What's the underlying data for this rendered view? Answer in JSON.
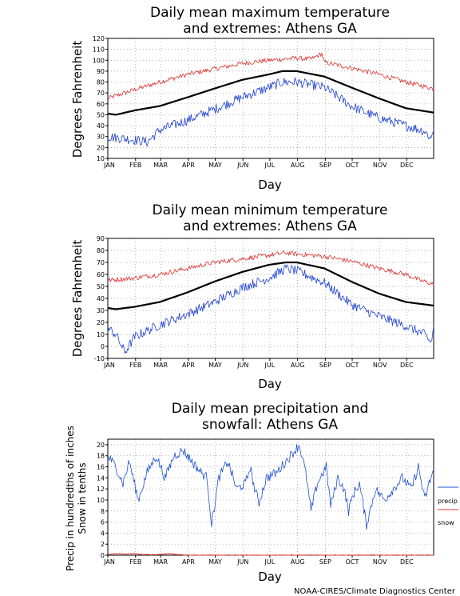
{
  "credit": "NOAA-CIRES/Climate Diagnostics Center",
  "colors": {
    "mean": "#000000",
    "max_extreme": "#e03030",
    "min_extreme": "#2040d0",
    "precip": "#2050d0",
    "snow": "#e03030",
    "grid": "#999999"
  },
  "chart_data": [
    {
      "type": "line",
      "title": [
        "Daily mean maximum temperature",
        "and extremes: Athens GA"
      ],
      "xlabel": "Day",
      "ylabel": "Degrees Fahrenheit",
      "x_ticks": [
        "JAN",
        "FEB",
        "MAR",
        "APR",
        "MAY",
        "JUN",
        "JUL",
        "AUG",
        "SEP",
        "OCT",
        "NOV",
        "DEC"
      ],
      "ylim": [
        10,
        120
      ],
      "y_ticks": [
        10,
        20,
        30,
        40,
        50,
        60,
        70,
        80,
        90,
        100,
        110,
        120
      ],
      "grid": true,
      "series": [
        {
          "role": "mean",
          "keypoints": [
            [
              1,
              51
            ],
            [
              10,
              50
            ],
            [
              31,
              54
            ],
            [
              59,
              58
            ],
            [
              90,
              66
            ],
            [
              120,
              74
            ],
            [
              151,
              82
            ],
            [
              181,
              87
            ],
            [
              196,
              90
            ],
            [
              212,
              90
            ],
            [
              243,
              85
            ],
            [
              273,
              75
            ],
            [
              304,
              65
            ],
            [
              334,
              56
            ],
            [
              365,
              52
            ]
          ]
        },
        {
          "role": "max_extreme",
          "keypoints": [
            [
              1,
              65
            ],
            [
              31,
              73
            ],
            [
              59,
              80
            ],
            [
              90,
              87
            ],
            [
              120,
              92
            ],
            [
              151,
              97
            ],
            [
              181,
              100
            ],
            [
              212,
              102
            ],
            [
              228,
              101
            ],
            [
              240,
              106
            ],
            [
              243,
              98
            ],
            [
              273,
              93
            ],
            [
              304,
              87
            ],
            [
              334,
              80
            ],
            [
              365,
              74
            ]
          ]
        },
        {
          "role": "min_extreme",
          "keypoints": [
            [
              1,
              30
            ],
            [
              31,
              27
            ],
            [
              45,
              25
            ],
            [
              59,
              36
            ],
            [
              90,
              45
            ],
            [
              120,
              55
            ],
            [
              151,
              66
            ],
            [
              181,
              75
            ],
            [
              196,
              80
            ],
            [
              212,
              80
            ],
            [
              243,
              75
            ],
            [
              273,
              58
            ],
            [
              304,
              47
            ],
            [
              334,
              40
            ],
            [
              355,
              35
            ],
            [
              362,
              28
            ],
            [
              365,
              38
            ]
          ]
        }
      ]
    },
    {
      "type": "line",
      "title": [
        "Daily mean minimum temperature",
        "and extremes: Athens GA"
      ],
      "xlabel": "Day",
      "ylabel": "Degrees Fahrenheit",
      "x_ticks": [
        "JAN",
        "FEB",
        "MAR",
        "APR",
        "MAY",
        "JUN",
        "JUL",
        "AUG",
        "SEP",
        "OCT",
        "NOV",
        "DEC"
      ],
      "ylim": [
        -10,
        90
      ],
      "y_ticks": [
        -10,
        0,
        10,
        20,
        30,
        40,
        50,
        60,
        70,
        80,
        90
      ],
      "grid": true,
      "series": [
        {
          "role": "mean",
          "keypoints": [
            [
              1,
              32
            ],
            [
              10,
              31
            ],
            [
              31,
              33
            ],
            [
              59,
              37
            ],
            [
              90,
              45
            ],
            [
              120,
              54
            ],
            [
              151,
              62
            ],
            [
              181,
              68
            ],
            [
              200,
              70
            ],
            [
              212,
              70
            ],
            [
              243,
              65
            ],
            [
              273,
              54
            ],
            [
              304,
              44
            ],
            [
              334,
              37
            ],
            [
              365,
              34
            ]
          ]
        },
        {
          "role": "max_extreme",
          "keypoints": [
            [
              1,
              55
            ],
            [
              31,
              57
            ],
            [
              59,
              60
            ],
            [
              90,
              65
            ],
            [
              120,
              70
            ],
            [
              151,
              73
            ],
            [
              181,
              76
            ],
            [
              200,
              78
            ],
            [
              212,
              77
            ],
            [
              243,
              75
            ],
            [
              273,
              71
            ],
            [
              304,
              65
            ],
            [
              334,
              60
            ],
            [
              350,
              55
            ],
            [
              365,
              52
            ]
          ]
        },
        {
          "role": "min_extreme",
          "keypoints": [
            [
              1,
              15
            ],
            [
              10,
              10
            ],
            [
              20,
              -5
            ],
            [
              31,
              8
            ],
            [
              59,
              18
            ],
            [
              90,
              27
            ],
            [
              120,
              37
            ],
            [
              151,
              49
            ],
            [
              181,
              57
            ],
            [
              200,
              65
            ],
            [
              212,
              63
            ],
            [
              243,
              53
            ],
            [
              273,
              35
            ],
            [
              304,
              25
            ],
            [
              334,
              17
            ],
            [
              355,
              10
            ],
            [
              362,
              3
            ],
            [
              365,
              15
            ]
          ]
        }
      ]
    },
    {
      "type": "line",
      "title": [
        "Daily mean precipitation and",
        "snowfall: Athens GA"
      ],
      "xlabel": "Day",
      "ylabel": [
        "Precip in hundredths of inches",
        "Snow in tenths"
      ],
      "x_ticks": [
        "JAN",
        "FEB",
        "MAR",
        "APR",
        "MAY",
        "JUN",
        "JUL",
        "AUG",
        "SEP",
        "OCT",
        "NOV",
        "DEC"
      ],
      "ylim": [
        0,
        21
      ],
      "y_ticks": [
        0,
        2,
        4,
        6,
        8,
        10,
        12,
        14,
        16,
        18,
        20
      ],
      "grid": true,
      "legend": [
        "precip",
        "snow"
      ],
      "legend_position": "right",
      "series": [
        {
          "name": "precip",
          "keypoints": [
            [
              1,
              18
            ],
            [
              10,
              16
            ],
            [
              18,
              13
            ],
            [
              25,
              17
            ],
            [
              35,
              10
            ],
            [
              45,
              15
            ],
            [
              55,
              18
            ],
            [
              65,
              14
            ],
            [
              75,
              18
            ],
            [
              85,
              19
            ],
            [
              95,
              17
            ],
            [
              105,
              15
            ],
            [
              112,
              14
            ],
            [
              117,
              5.5
            ],
            [
              125,
              14
            ],
            [
              135,
              17
            ],
            [
              145,
              12
            ],
            [
              155,
              13
            ],
            [
              160,
              16
            ],
            [
              165,
              12
            ],
            [
              170,
              9.5
            ],
            [
              178,
              14
            ],
            [
              190,
              15
            ],
            [
              200,
              17
            ],
            [
              210,
              19
            ],
            [
              215,
              20
            ],
            [
              222,
              15
            ],
            [
              228,
              8
            ],
            [
              235,
              13
            ],
            [
              245,
              16
            ],
            [
              250,
              9
            ],
            [
              258,
              14
            ],
            [
              265,
              12
            ],
            [
              270,
              8
            ],
            [
              275,
              11
            ],
            [
              282,
              13
            ],
            [
              290,
              5.5
            ],
            [
              300,
              12
            ],
            [
              310,
              10
            ],
            [
              320,
              12
            ],
            [
              330,
              14
            ],
            [
              340,
              12
            ],
            [
              348,
              16
            ],
            [
              355,
              10
            ],
            [
              360,
              13
            ],
            [
              365,
              15.5
            ]
          ]
        },
        {
          "name": "snow",
          "keypoints": [
            [
              1,
              0.1
            ],
            [
              10,
              0.3
            ],
            [
              20,
              0.2
            ],
            [
              31,
              0.3
            ],
            [
              40,
              0.1
            ],
            [
              55,
              0.1
            ],
            [
              70,
              0.3
            ],
            [
              80,
              0.1
            ],
            [
              90,
              0
            ],
            [
              365,
              0
            ]
          ]
        }
      ]
    }
  ]
}
